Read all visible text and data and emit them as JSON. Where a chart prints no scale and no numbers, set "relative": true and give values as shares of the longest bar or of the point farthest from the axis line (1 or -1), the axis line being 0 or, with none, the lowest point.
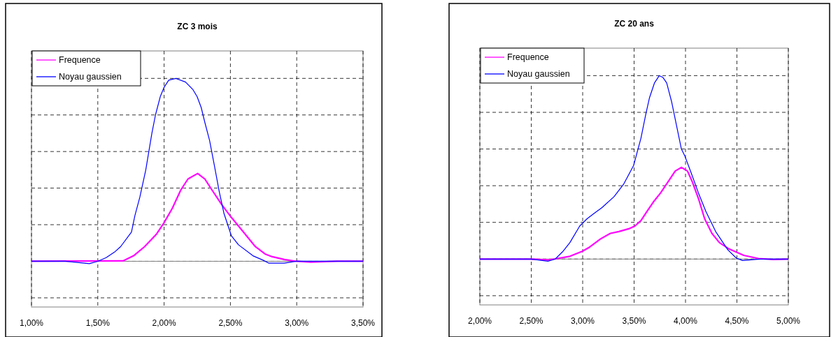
{
  "chart_data": [
    {
      "type": "line",
      "title": "ZC 3 mois",
      "relative": true,
      "xlim": [
        1,
        3.5
      ],
      "xticks": [
        {
          "value": 1,
          "label": "1,00%"
        },
        {
          "value": 1.5,
          "label": "1,50%"
        },
        {
          "value": 2,
          "label": "2,00%"
        },
        {
          "value": 2.5,
          "label": "2,50%"
        },
        {
          "value": 3,
          "label": "3,00%"
        },
        {
          "value": 3.5,
          "label": "3,50%"
        }
      ],
      "grid": true,
      "legend": "top left",
      "marker": "none",
      "series": [
        {
          "name": "Frequence",
          "color": "#ff00ff",
          "x": [
            1,
            1.69,
            1.77,
            1.853,
            1.944,
            1.999,
            2.062,
            2.126,
            2.18,
            2.253,
            2.307,
            2.361,
            2.434,
            2.507,
            2.598,
            2.688,
            2.761,
            2.815,
            2.906,
            2.997,
            3.106,
            3.306,
            3.5
          ],
          "values": [
            0,
            0.002,
            0.03,
            0.08,
            0.15,
            0.21,
            0.29,
            0.39,
            0.45,
            0.48,
            0.45,
            0.39,
            0.31,
            0.24,
            0.16,
            0.08,
            0.04,
            0.025,
            0.01,
            0,
            -0.005,
            0,
            0
          ]
        },
        {
          "name": "Noyau gaussien",
          "color": "#0000ff",
          "x": [
            1,
            1.254,
            1.436,
            1.5,
            1.563,
            1.626,
            1.672,
            1.754,
            1.78,
            1.817,
            1.862,
            1.908,
            1.935,
            1.971,
            1.999,
            2.035,
            2.089,
            2.162,
            2.216,
            2.249,
            2.28,
            2.307,
            2.343,
            2.38,
            2.416,
            2.452,
            2.507,
            2.561,
            2.67,
            2.743,
            2.788,
            2.906,
            2.997,
            3.5
          ],
          "values": [
            0,
            0,
            -0.013,
            0,
            0.02,
            0.05,
            0.08,
            0.16,
            0.25,
            0.35,
            0.5,
            0.7,
            0.8,
            0.9,
            0.95,
            0.99,
            1,
            0.98,
            0.94,
            0.9,
            0.84,
            0.76,
            0.66,
            0.52,
            0.38,
            0.26,
            0.14,
            0.09,
            0.03,
            0.007,
            -0.01,
            -0.01,
            0,
            0
          ]
        }
      ]
    },
    {
      "type": "line",
      "title": "ZC 20 ans",
      "relative": true,
      "xlim": [
        2,
        5
      ],
      "xticks": [
        {
          "value": 2,
          "label": "2,00%"
        },
        {
          "value": 2.5,
          "label": "2,50%"
        },
        {
          "value": 3,
          "label": "3,00%"
        },
        {
          "value": 3.5,
          "label": "3,50%"
        },
        {
          "value": 4,
          "label": "4,00%"
        },
        {
          "value": 4.5,
          "label": "4,50%"
        },
        {
          "value": 5,
          "label": "5,00%"
        }
      ],
      "grid": true,
      "legend": "top left",
      "marker": "none",
      "series": [
        {
          "name": "Frequence",
          "color": "#ff00ff",
          "x": [
            2,
            2.495,
            2.662,
            2.733,
            2.876,
            2.995,
            3.067,
            3.174,
            3.269,
            3.352,
            3.448,
            3.507,
            3.567,
            3.626,
            3.686,
            3.757,
            3.829,
            3.9,
            3.96,
            4.019,
            4.067,
            4.126,
            4.186,
            4.257,
            4.329,
            4.424,
            4.567,
            4.71,
            4.852,
            5
          ],
          "values": [
            0,
            0,
            -0.005,
            0.001,
            0.015,
            0.042,
            0.065,
            0.11,
            0.14,
            0.15,
            0.165,
            0.18,
            0.21,
            0.26,
            0.31,
            0.36,
            0.42,
            0.48,
            0.5,
            0.48,
            0.42,
            0.33,
            0.22,
            0.14,
            0.09,
            0.055,
            0.02,
            0.003,
            -0.002,
            0
          ]
        },
        {
          "name": "Noyau gaussien",
          "color": "#0000ff",
          "x": [
            2,
            2.495,
            2.662,
            2.733,
            2.805,
            2.876,
            2.971,
            3.043,
            3.114,
            3.186,
            3.305,
            3.4,
            3.495,
            3.567,
            3.614,
            3.65,
            3.698,
            3.745,
            3.781,
            3.817,
            3.864,
            3.912,
            3.96,
            3.995,
            4.055,
            4.126,
            4.198,
            4.293,
            4.412,
            4.495,
            4.555,
            4.721,
            5
          ],
          "values": [
            0,
            0,
            -0.012,
            0,
            0.04,
            0.09,
            0.18,
            0.22,
            0.25,
            0.28,
            0.34,
            0.41,
            0.51,
            0.66,
            0.79,
            0.88,
            0.96,
            1,
            0.99,
            0.96,
            0.86,
            0.73,
            0.6,
            0.56,
            0.47,
            0.36,
            0.26,
            0.15,
            0.05,
            0.005,
            -0.008,
            0,
            0
          ]
        }
      ]
    }
  ]
}
